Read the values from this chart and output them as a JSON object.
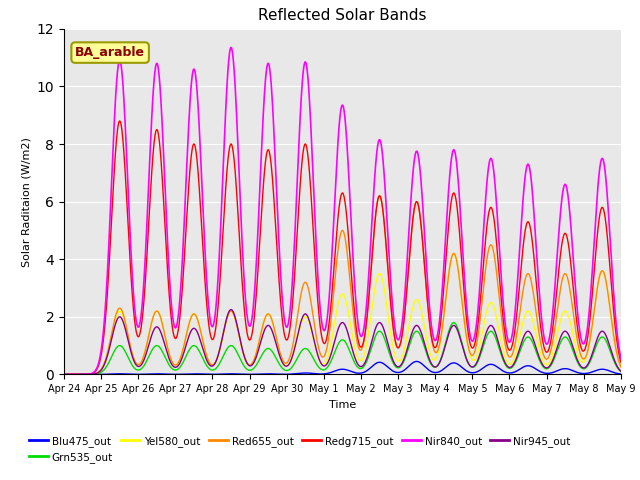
{
  "title": "Reflected Solar Bands",
  "xlabel": "Time",
  "ylabel": "Solar Raditaion (W/m2)",
  "ylim": [
    0,
    12
  ],
  "annotation": "BA_arable",
  "plot_bg": "#e8e8e8",
  "fig_bg": "#ffffff",
  "series_order": [
    "Blu475_out",
    "Grn535_out",
    "Yel580_out",
    "Red655_out",
    "Redg715_out",
    "Nir840_out",
    "Nir945_out"
  ],
  "series_colors": {
    "Blu475_out": "#0000ff",
    "Grn535_out": "#00dd00",
    "Yel580_out": "#ffff00",
    "Red655_out": "#ff8800",
    "Redg715_out": "#ff0000",
    "Nir840_out": "#ff00ff",
    "Nir945_out": "#880088"
  },
  "series_lw": {
    "Blu475_out": 1.0,
    "Grn535_out": 1.0,
    "Yel580_out": 1.0,
    "Red655_out": 1.0,
    "Redg715_out": 1.0,
    "Nir840_out": 1.2,
    "Nir945_out": 1.0
  },
  "tick_labels": [
    "Apr 24",
    "Apr 25",
    "Apr 26",
    "Apr 27",
    "Apr 28",
    "Apr 29",
    "Apr 30",
    "May 1",
    "May 2",
    "May 3",
    "May 4",
    "May 5",
    "May 6",
    "May 7",
    "May 8",
    "May 9"
  ],
  "day_peaks": {
    "Blu475_out": [
      0.0,
      0.02,
      0.02,
      0.02,
      0.02,
      0.02,
      0.05,
      0.18,
      0.42,
      0.45,
      0.4,
      0.35,
      0.3,
      0.2,
      0.18,
      0.0
    ],
    "Grn535_out": [
      0.0,
      1.0,
      1.0,
      1.0,
      1.0,
      0.9,
      0.9,
      1.2,
      1.5,
      1.5,
      1.8,
      1.5,
      1.3,
      1.3,
      1.3,
      0.0
    ],
    "Yel580_out": [
      0.0,
      2.2,
      2.2,
      2.1,
      2.2,
      2.1,
      2.0,
      2.8,
      3.5,
      2.6,
      4.2,
      2.5,
      2.2,
      2.2,
      3.6,
      0.0
    ],
    "Red655_out": [
      0.0,
      2.3,
      2.2,
      2.1,
      2.2,
      2.1,
      3.2,
      5.0,
      6.2,
      6.0,
      4.2,
      4.5,
      3.5,
      3.5,
      3.6,
      0.0
    ],
    "Redg715_out": [
      0.0,
      8.8,
      8.5,
      8.0,
      8.0,
      7.8,
      8.0,
      6.3,
      6.2,
      6.0,
      6.3,
      5.8,
      5.3,
      4.9,
      5.8,
      0.0
    ],
    "Nir840_out": [
      0.0,
      10.9,
      10.8,
      10.6,
      11.35,
      10.8,
      10.85,
      9.35,
      8.15,
      7.75,
      7.8,
      7.5,
      7.3,
      6.6,
      7.5,
      0.0
    ],
    "Nir945_out": [
      0.0,
      2.0,
      1.65,
      1.6,
      2.25,
      1.7,
      2.1,
      1.8,
      1.8,
      1.7,
      1.7,
      1.7,
      1.5,
      1.5,
      1.5,
      0.0
    ]
  },
  "sigma": 0.22,
  "points_per_day": 144
}
